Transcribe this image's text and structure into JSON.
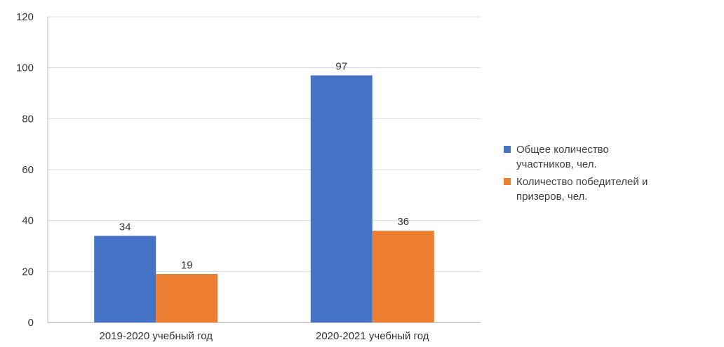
{
  "chart_data": {
    "type": "bar",
    "title": "",
    "xlabel": "",
    "ylabel": "",
    "categories": [
      "2019-2020 учебный год",
      "2020-2021 учебный год"
    ],
    "series": [
      {
        "name_lines": [
          "Общее количество",
          "участников, чел."
        ],
        "color": "#4472C4",
        "values": [
          34,
          97
        ]
      },
      {
        "name_lines": [
          "Количество победителей и",
          "призеров, чел."
        ],
        "color": "#ED7D31",
        "values": [
          19,
          36
        ]
      }
    ],
    "ylim": [
      0,
      120
    ],
    "yticks": [
      0,
      20,
      40,
      60,
      80,
      100,
      120
    ],
    "grid": true,
    "legend_position": "right",
    "data_labels": true
  }
}
